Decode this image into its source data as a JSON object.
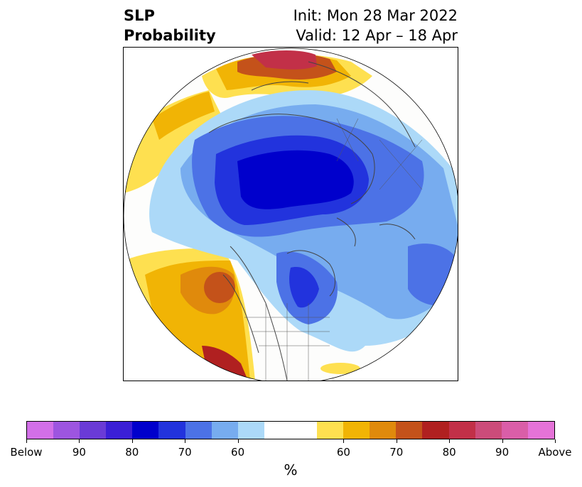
{
  "title": {
    "left_line1": "SLP",
    "left_line2": "Probability",
    "init": "Init: Mon 28 Mar 2022",
    "valid": "Valid: 12 Apr – 18 Apr"
  },
  "colorbar": {
    "colors": [
      "#d26fe8",
      "#9d55e0",
      "#6a3bd6",
      "#3b1fd6",
      "#0000cc",
      "#2233dd",
      "#4c72e6",
      "#77acef",
      "#acd9f8",
      "#ffffff",
      "#ffffff",
      "#fee050",
      "#f1b405",
      "#e08a0c",
      "#c4521a",
      "#b02020",
      "#c23048",
      "#cc4c7a",
      "#da5ea8",
      "#e573d8"
    ],
    "tick_labels": [
      "Below",
      "90",
      "80",
      "70",
      "60",
      "60",
      "70",
      "80",
      "90",
      "Above"
    ],
    "unit": "%"
  }
}
